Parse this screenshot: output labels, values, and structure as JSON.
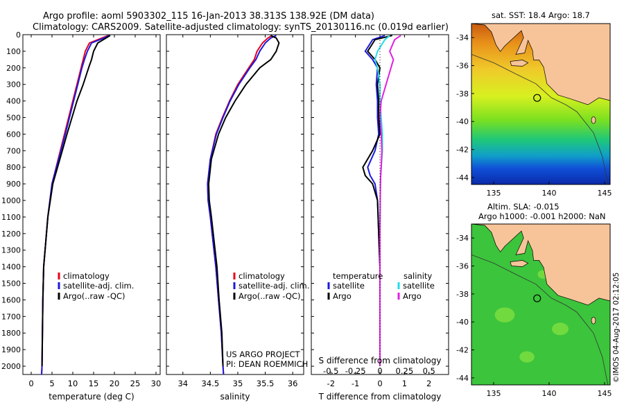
{
  "header": {
    "line1": "Argo profile: aoml 5903302_115 16-Jan-2013 38.313S 138.92E (DM data)",
    "line2": "Climatology: CARS2009. Satellite-adjusted climatology: synTS_20130116.nc (0.019d earlier)"
  },
  "depth_ticks": [
    0,
    100,
    200,
    300,
    400,
    500,
    600,
    700,
    800,
    900,
    1000,
    1100,
    1200,
    1300,
    1400,
    1500,
    1600,
    1700,
    1800,
    1900,
    2000
  ],
  "colors": {
    "climatology": "#e8001c",
    "satellite": "#1a1adc",
    "argo": "#000000",
    "salinity_sat": "#22dcea",
    "salinity_argo": "#e020e0",
    "map_land": "#f7c49a"
  },
  "chart_data": [
    {
      "type": "line",
      "id": "temperature",
      "xlabel": "temperature (deg C)",
      "xlim": [
        -2,
        31
      ],
      "ylim": [
        2050,
        0
      ],
      "xticks": [
        0,
        5,
        10,
        15,
        20,
        25,
        30
      ],
      "legend": [
        "climatology",
        "satellite-adj. clim.",
        "Argo(..raw -QC)"
      ],
      "series": [
        {
          "name": "climatology",
          "color": "#e8001c",
          "x": [
            18.5,
            17,
            14,
            13,
            12.5,
            12,
            11,
            10,
            9,
            8,
            6.5,
            5,
            4.5,
            4,
            3.5,
            3,
            2.8,
            2.7,
            2.6,
            2.5
          ],
          "y": [
            5,
            20,
            50,
            100,
            150,
            200,
            300,
            400,
            500,
            600,
            750,
            900,
            1000,
            1100,
            1250,
            1400,
            1600,
            1800,
            2000,
            2050
          ]
        },
        {
          "name": "satellite-adj. clim.",
          "color": "#1a1adc",
          "x": [
            18.8,
            17.5,
            14.5,
            13.5,
            12.8,
            12.2,
            11.2,
            10.2,
            9.2,
            8.2,
            6.6,
            5,
            4.5,
            4,
            3.5,
            3,
            2.8,
            2.7,
            2.6,
            2.5
          ],
          "y": [
            5,
            20,
            50,
            100,
            150,
            200,
            300,
            400,
            500,
            600,
            750,
            900,
            1000,
            1100,
            1250,
            1400,
            1600,
            1800,
            2000,
            2050
          ]
        },
        {
          "name": "Argo(..raw -QC)",
          "color": "#000000",
          "x": [
            19,
            18,
            16,
            15,
            14.5,
            13.8,
            12.5,
            11,
            9.8,
            8.6,
            6.9,
            5.2,
            4.6,
            4,
            3.5,
            3,
            2.8,
            2.7,
            2.6
          ],
          "y": [
            5,
            20,
            50,
            100,
            150,
            200,
            300,
            400,
            500,
            600,
            750,
            900,
            1000,
            1100,
            1250,
            1400,
            1600,
            1800,
            2000
          ]
        }
      ]
    },
    {
      "type": "line",
      "id": "salinity",
      "xlabel": "salinity",
      "xlim": [
        33.7,
        36.2
      ],
      "ylim": [
        2050,
        0
      ],
      "xticks": [
        34,
        34.5,
        35,
        35.5,
        36
      ],
      "legend": [
        "climatology",
        "satellite-adj. clim."
      ],
      "legend_extra": "Argo(..raw -QC)",
      "annotation": [
        "US ARGO PROJECT",
        "PI: DEAN ROEMMICH"
      ],
      "series": [
        {
          "name": "climatology",
          "color": "#e8001c",
          "x": [
            35.62,
            35.55,
            35.45,
            35.35,
            35.3,
            35.2,
            35.0,
            34.85,
            34.72,
            34.6,
            34.5,
            34.45,
            34.46,
            34.5,
            34.55,
            34.6,
            34.65,
            34.7,
            34.73,
            34.74
          ],
          "y": [
            5,
            20,
            50,
            100,
            150,
            200,
            300,
            400,
            500,
            600,
            750,
            900,
            1000,
            1100,
            1250,
            1400,
            1600,
            1800,
            2000,
            2050
          ]
        },
        {
          "name": "satellite-adj. clim.",
          "color": "#1a1adc",
          "x": [
            35.7,
            35.6,
            35.5,
            35.4,
            35.33,
            35.22,
            35.02,
            34.86,
            34.73,
            34.61,
            34.5,
            34.45,
            34.46,
            34.5,
            34.55,
            34.6,
            34.65,
            34.7,
            34.73,
            34.74
          ],
          "y": [
            5,
            20,
            50,
            100,
            150,
            200,
            300,
            400,
            500,
            600,
            750,
            900,
            1000,
            1100,
            1250,
            1400,
            1600,
            1800,
            2000,
            2050
          ]
        },
        {
          "name": "Argo(..raw -QC)",
          "color": "#000000",
          "x": [
            35.6,
            35.7,
            35.75,
            35.7,
            35.6,
            35.4,
            35.15,
            34.95,
            34.78,
            34.65,
            34.52,
            34.47,
            34.48,
            34.52,
            34.57,
            34.62,
            34.66,
            34.71,
            34.73
          ],
          "y": [
            5,
            20,
            50,
            100,
            150,
            200,
            300,
            400,
            500,
            600,
            750,
            900,
            1000,
            1100,
            1250,
            1400,
            1600,
            1800,
            2000
          ]
        }
      ]
    },
    {
      "type": "line",
      "id": "differences",
      "xlabel": "T difference from climatology",
      "xlabel_top": "S difference from climatology",
      "xlim": [
        -2.8,
        2.8
      ],
      "ylim": [
        2050,
        0
      ],
      "xticks": [
        -2,
        -1,
        0,
        1,
        2
      ],
      "xticks_top": [
        "-0.5",
        "-0.25",
        "0",
        "0.25",
        "0.5"
      ],
      "legend_temperature": {
        "title": "temperature",
        "items": [
          "satellite",
          "Argo"
        ]
      },
      "legend_salinity": {
        "title": "salinity",
        "items": [
          "satellite",
          "Argo"
        ]
      },
      "series": [
        {
          "name": "satellite",
          "group": "temperature",
          "color": "#1a1adc",
          "x": [
            0.2,
            -0.3,
            -0.6,
            -0.3,
            -0.1,
            -0.15,
            -0.1,
            -0.1,
            -0.05,
            -0.2,
            -0.5,
            -0.4,
            -0.2,
            -0.1,
            -0.05,
            0,
            0,
            0,
            0
          ],
          "y": [
            5,
            30,
            100,
            150,
            200,
            300,
            400,
            500,
            600,
            700,
            800,
            850,
            900,
            1000,
            1200,
            1400,
            1600,
            1800,
            2000
          ]
        },
        {
          "name": "Argo",
          "group": "temperature",
          "color": "#000000",
          "x": [
            0.5,
            -0.2,
            -0.5,
            -0.2,
            0,
            -0.1,
            -0.05,
            -0.05,
            0,
            -0.3,
            -0.7,
            -0.6,
            -0.3,
            -0.1,
            -0.05,
            0,
            0,
            0,
            0
          ],
          "y": [
            5,
            30,
            100,
            150,
            200,
            300,
            400,
            500,
            600,
            700,
            800,
            850,
            900,
            1000,
            1200,
            1400,
            1600,
            1800,
            2000
          ]
        },
        {
          "name": "satellite",
          "group": "salinity",
          "color": "#22dcea",
          "x": [
            0.4,
            0.2,
            -0.1,
            -0.2,
            -0.1,
            0,
            0,
            0.05,
            0.1,
            0.1,
            0.05,
            0.03,
            0.02,
            0.01,
            0,
            0,
            0,
            0,
            0
          ],
          "y": [
            5,
            30,
            100,
            150,
            200,
            300,
            400,
            500,
            600,
            700,
            800,
            850,
            900,
            1000,
            1200,
            1400,
            1600,
            1800,
            2000
          ]
        },
        {
          "name": "Argo",
          "group": "salinity",
          "color": "#e020e0",
          "x": [
            0.85,
            0.6,
            0.4,
            0.55,
            0.45,
            0.25,
            0.05,
            0,
            0.05,
            0.08,
            0.05,
            0.03,
            0.02,
            0.01,
            0,
            0,
            0,
            0,
            0
          ],
          "y": [
            5,
            30,
            100,
            150,
            200,
            300,
            400,
            500,
            600,
            700,
            800,
            850,
            900,
            1000,
            1200,
            1400,
            1600,
            1800,
            2000
          ]
        }
      ]
    },
    {
      "type": "heatmap",
      "id": "sst-map",
      "title": "sat. SST: 18.4 Argo: 18.7",
      "xlim": [
        133,
        145.5
      ],
      "ylim": [
        -44.5,
        -33
      ],
      "xticks": [
        135,
        140,
        145
      ],
      "yticks": [
        -34,
        -36,
        -38,
        -40,
        -42,
        -44
      ],
      "marker": {
        "lon": 138.92,
        "lat": -38.313
      }
    },
    {
      "type": "heatmap",
      "id": "sla-map",
      "title_line1": "Altim. SLA: -0.015",
      "title_line2": "Argo h1000: -0.001 h2000: NaN",
      "xlim": [
        133,
        145.5
      ],
      "ylim": [
        -44.5,
        -33
      ],
      "xticks": [
        135,
        140,
        145
      ],
      "yticks": [
        -34,
        -36,
        -38,
        -40,
        -42,
        -44
      ],
      "marker": {
        "lon": 138.92,
        "lat": -38.313
      }
    }
  ],
  "footer_stamp": "©IMOS 04-Aug-2017 02:12:05"
}
